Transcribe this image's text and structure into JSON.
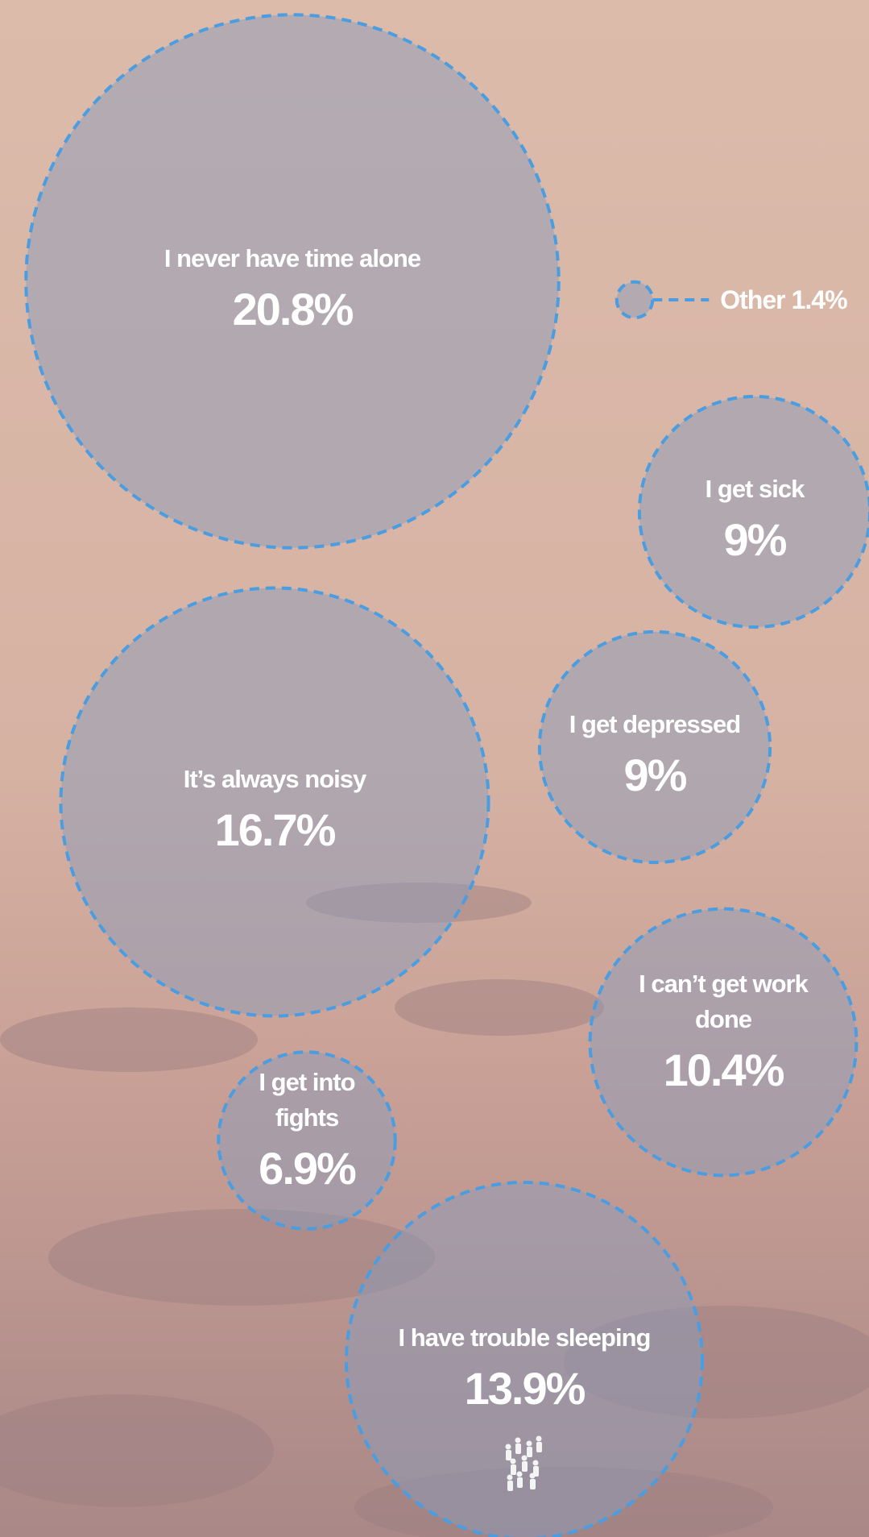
{
  "chart_data": {
    "type": "bubble",
    "categories": [
      "I never have time alone",
      "Other",
      "I get sick",
      "It’s always noisy",
      "I get depressed",
      "I can’t get work done",
      "I get into fights",
      "I have trouble sleeping"
    ],
    "values": [
      20.8,
      1.4,
      9,
      16.7,
      9,
      10.4,
      6.9,
      13.9
    ],
    "value_labels": [
      "20.8%",
      "1.4%",
      "9%",
      "16.7%",
      "9%",
      "10.4%",
      "6.9%",
      "13.9%"
    ],
    "color": "#4a9de0"
  }
}
